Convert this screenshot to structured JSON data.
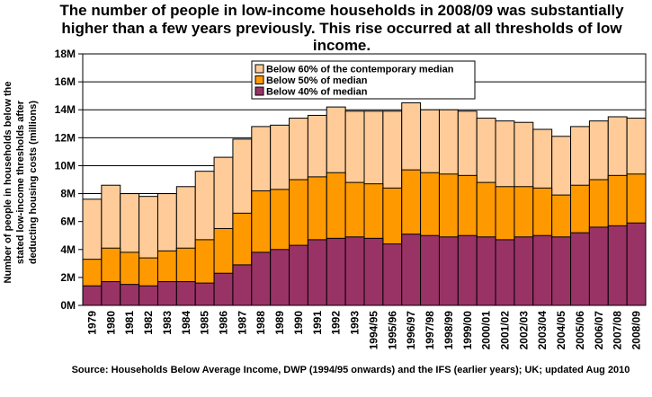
{
  "title": "The number of people in low-income households in 2008/09 was substantially higher than a few years previously.  This rise occurred at all thresholds of low income.",
  "source": "Source: Households Below Average Income, DWP (1994/95 onwards) and the IFS (earlier years); UK; updated Aug 2010",
  "chart_data": {
    "type": "bar",
    "stacked": false,
    "overlapping": true,
    "ylabel_lines": [
      "Number of people in households below the",
      "stated low-income thresholds after",
      "deducting housing costs (millions)"
    ],
    "xlabel": "",
    "yticks": [
      "0M",
      "2M",
      "4M",
      "6M",
      "8M",
      "10M",
      "12M",
      "14M",
      "16M",
      "18M"
    ],
    "ylim": [
      0,
      18
    ],
    "grid": true,
    "legend_position": "top-center",
    "categories": [
      "1979",
      "1980",
      "1981",
      "1982",
      "1983",
      "1984",
      "1985",
      "1986",
      "1987",
      "1988",
      "1989",
      "1990",
      "1991",
      "1992",
      "1993",
      "1994/95",
      "1995/96",
      "1996/97",
      "1997/98",
      "1998/99",
      "1999/00",
      "2000/01",
      "2001/02",
      "2002/03",
      "2003/04",
      "2004/05",
      "2005/06",
      "2006/07",
      "2007/08",
      "2008/09"
    ],
    "series": [
      {
        "name": "Below 60% of the contemporary median",
        "color": "#ffcc99",
        "values": [
          7.6,
          8.6,
          8.0,
          7.8,
          8.0,
          8.5,
          9.6,
          10.6,
          11.9,
          12.8,
          12.9,
          13.4,
          13.6,
          14.2,
          13.9,
          13.9,
          13.9,
          14.5,
          14.0,
          14.0,
          13.9,
          13.4,
          13.2,
          13.1,
          12.6,
          12.1,
          12.8,
          13.2,
          13.5,
          13.4
        ]
      },
      {
        "name": "Below 50% of median",
        "color": "#ff9900",
        "values": [
          3.3,
          4.1,
          3.8,
          3.4,
          3.9,
          4.1,
          4.7,
          5.5,
          6.6,
          8.2,
          8.3,
          9.0,
          9.2,
          9.5,
          8.8,
          8.7,
          8.4,
          9.7,
          9.5,
          9.4,
          9.3,
          8.8,
          8.5,
          8.5,
          8.4,
          7.9,
          8.6,
          9.0,
          9.3,
          9.4
        ]
      },
      {
        "name": "Below 40% of median",
        "color": "#993366",
        "values": [
          1.4,
          1.7,
          1.5,
          1.4,
          1.7,
          1.7,
          1.6,
          2.3,
          2.9,
          3.8,
          4.0,
          4.3,
          4.7,
          4.8,
          4.9,
          4.8,
          4.4,
          5.1,
          5.0,
          4.9,
          5.0,
          4.9,
          4.7,
          4.9,
          5.0,
          4.9,
          5.2,
          5.6,
          5.7,
          5.9
        ]
      }
    ]
  }
}
